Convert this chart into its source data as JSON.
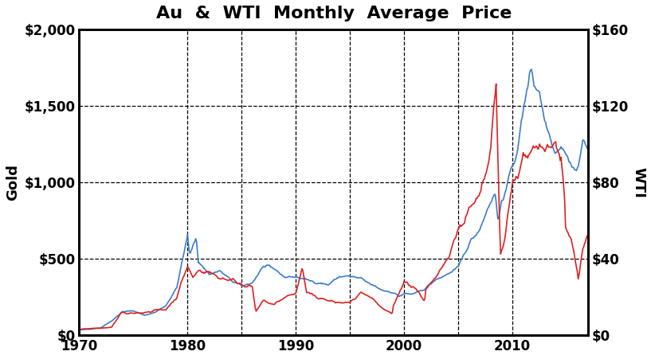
{
  "title": "Au  &  WTI  Monthly  Average  Price",
  "ylabel_left": "Gold",
  "ylabel_right": "WTI",
  "ylim_left": [
    0,
    2000
  ],
  "ylim_right": [
    0,
    160
  ],
  "xlim": [
    1970,
    2017
  ],
  "yticks_left": [
    0,
    500,
    1000,
    1500,
    2000
  ],
  "ytick_labels_left": [
    "$0",
    "$500",
    "$1,000",
    "$1,500",
    "$2,000"
  ],
  "yticks_right": [
    0,
    40,
    80,
    120,
    160
  ],
  "ytick_labels_right": [
    "$0",
    "$40",
    "$80",
    "$120",
    "$160"
  ],
  "xticks": [
    1970,
    1980,
    1990,
    2000,
    2010
  ],
  "xtick_labels": [
    "1970",
    "1980",
    "1990",
    "2000",
    "2010"
  ],
  "vgrid_lines": [
    1980,
    1985,
    1990,
    1995,
    2000,
    2005,
    2010
  ],
  "color_gold": "#3a7dc9",
  "color_wti": "#e02020",
  "linewidth": 1.2,
  "title_fontsize": 16,
  "axis_label_fontsize": 13,
  "tick_fontsize": 12,
  "background_color": "#ffffff",
  "wti_scale": 12.5
}
